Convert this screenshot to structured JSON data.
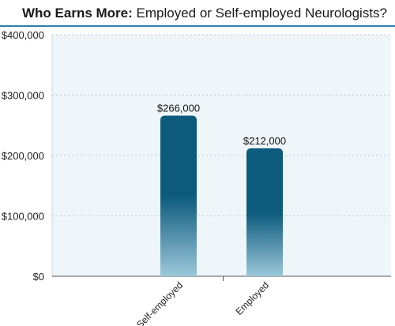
{
  "title": {
    "bold": "Who Earns More:",
    "rest": " Employed or Self-employed Neurologists?"
  },
  "colors": {
    "bar_top": "#0c5a7c",
    "bar_bottom": "#9cc8da",
    "plot_bg": "#eef6fa",
    "grid": "#b8c4ca",
    "title_rule": "#2f7fa8"
  },
  "chart_data": {
    "type": "bar",
    "title": "Who Earns More: Employed or Self-employed Neurologists?",
    "categories": [
      "Self-employed",
      "Employed"
    ],
    "values": [
      266000,
      212000
    ],
    "data_labels": [
      "$266,000",
      "$212,000"
    ],
    "y_ticks": [
      0,
      100000,
      200000,
      300000,
      400000
    ],
    "y_tick_labels": [
      "$0",
      "$100,000",
      "$200,000",
      "$300,000",
      "$400,000"
    ],
    "ylim": [
      0,
      400000
    ],
    "xlabel": "",
    "ylabel": "",
    "grid": true
  }
}
